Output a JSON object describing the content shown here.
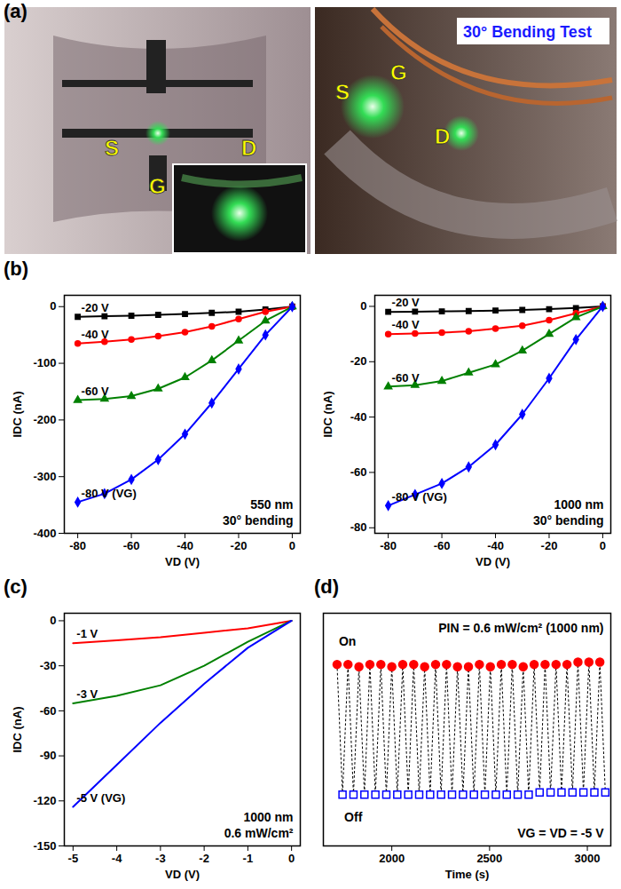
{
  "photo_panel": {
    "title": "(a)",
    "electrode_labels": [
      "S",
      "G",
      "D"
    ],
    "caption": "30° Bending Test"
  },
  "chart_data": [
    {
      "type": "line",
      "title": "(b)",
      "x_label": "VD (V)",
      "y_label": "IDC (nA)",
      "x": [
        -80,
        -70,
        -60,
        -50,
        -40,
        -30,
        -20,
        -10,
        0
      ],
      "xlim": [
        -85,
        3
      ],
      "xticks": [
        -80,
        -60,
        -40,
        -20,
        0
      ],
      "ylim": [
        -400,
        20
      ],
      "yticks": [
        0,
        -100,
        -200,
        -300,
        -400
      ],
      "series": [
        {
          "name": "-20 V",
          "color": "#000000",
          "marker": "square",
          "values": [
            -18,
            -17,
            -16,
            -14.5,
            -13,
            -11,
            -9,
            -5,
            0
          ]
        },
        {
          "name": "-40 V",
          "color": "#ff0000",
          "marker": "circle",
          "values": [
            -65,
            -62,
            -58,
            -52,
            -45,
            -35,
            -22,
            -9,
            0
          ]
        },
        {
          "name": "-60 V",
          "color": "#008000",
          "marker": "triangle",
          "values": [
            -165,
            -163,
            -158,
            -145,
            -125,
            -95,
            -60,
            -25,
            0
          ]
        },
        {
          "name": "-80 V (VG)",
          "color": "#0000ff",
          "marker": "diamond",
          "values": [
            -345,
            -330,
            -305,
            -270,
            -225,
            -170,
            -110,
            -50,
            0
          ]
        }
      ],
      "annotations": [
        "550 nm",
        "30° bending"
      ]
    },
    {
      "type": "line",
      "x_label": "VD (V)",
      "y_label": "IDC (nA)",
      "x": [
        -80,
        -70,
        -60,
        -50,
        -40,
        -30,
        -20,
        -10,
        0
      ],
      "xlim": [
        -85,
        3
      ],
      "xticks": [
        -80,
        -60,
        -40,
        -20,
        0
      ],
      "ylim": [
        -82,
        4
      ],
      "yticks": [
        0,
        -20,
        -40,
        -60,
        -80
      ],
      "series": [
        {
          "name": "-20 V",
          "color": "#000000",
          "marker": "square",
          "values": [
            -2,
            -1.9,
            -1.8,
            -1.7,
            -1.5,
            -1.3,
            -1,
            -0.6,
            0
          ]
        },
        {
          "name": "-40 V",
          "color": "#ff0000",
          "marker": "circle",
          "values": [
            -10,
            -9.8,
            -9.5,
            -9,
            -8,
            -7,
            -5,
            -2.5,
            0
          ]
        },
        {
          "name": "-60 V",
          "color": "#008000",
          "marker": "triangle",
          "values": [
            -29,
            -28.5,
            -27,
            -24,
            -21,
            -16,
            -10,
            -4,
            0
          ]
        },
        {
          "name": "-80 V (VG)",
          "color": "#0000ff",
          "marker": "diamond",
          "values": [
            -72,
            -68,
            -64,
            -58,
            -50,
            -39,
            -26,
            -12,
            0
          ]
        }
      ],
      "annotations": [
        "1000 nm",
        "30° bending"
      ]
    },
    {
      "type": "line",
      "title": "(c)",
      "x_label": "VD (V)",
      "y_label": "IDC (nA)",
      "x": [
        -5,
        -4,
        -3,
        -2,
        -1,
        0
      ],
      "xlim": [
        -5.2,
        0.2
      ],
      "xticks": [
        -5,
        -4,
        -3,
        -2,
        -1,
        0
      ],
      "ylim": [
        -150,
        5
      ],
      "yticks": [
        0,
        -30,
        -60,
        -90,
        -120,
        -150
      ],
      "series": [
        {
          "name": "-1 V",
          "color": "#ff0000",
          "values": [
            -15,
            -13,
            -11,
            -8,
            -5,
            0
          ]
        },
        {
          "name": "-3 V",
          "color": "#008000",
          "values": [
            -55,
            -50,
            -43,
            -30,
            -14,
            0
          ]
        },
        {
          "name": "-5 V (VG)",
          "color": "#0000ff",
          "values": [
            -124,
            -96,
            -68,
            -42,
            -18,
            0
          ]
        }
      ],
      "annotations": [
        "1000 nm",
        "0.6 mW/cm²"
      ]
    },
    {
      "type": "scatter",
      "title": "(d)",
      "x_label": "Time (s)",
      "xlim": [
        1650,
        3120
      ],
      "xticks": [
        2000,
        2500,
        3000
      ],
      "ylim": [
        0,
        100
      ],
      "yticks": [],
      "tick_labels": "x",
      "line_style": "dotted",
      "series": [
        {
          "name": "On",
          "color": "#ff0000",
          "marker": "circle",
          "x": [
            1720,
            1776,
            1832,
            1888,
            1944,
            2000,
            2056,
            2112,
            2168,
            2224,
            2280,
            2336,
            2392,
            2448,
            2504,
            2560,
            2616,
            2672,
            2728,
            2784,
            2840,
            2896,
            2952,
            3008,
            3064
          ],
          "values": [
            78,
            78,
            77,
            78,
            78,
            77,
            78,
            78,
            77,
            78,
            78,
            77,
            77,
            78,
            77,
            78,
            78,
            77,
            78,
            78,
            78,
            78,
            79,
            79,
            79
          ]
        },
        {
          "name": "Off",
          "color": "#0000ff",
          "marker": "square",
          "x": [
            1748,
            1804,
            1860,
            1916,
            1972,
            2028,
            2084,
            2140,
            2196,
            2252,
            2308,
            2364,
            2420,
            2476,
            2532,
            2588,
            2644,
            2700,
            2756,
            2812,
            2868,
            2924,
            2980,
            3036,
            3092
          ],
          "values": [
            22,
            22,
            22,
            22,
            22,
            22,
            22,
            22,
            22,
            22,
            22,
            22,
            22,
            22,
            22,
            22,
            22,
            22,
            23,
            23,
            23,
            23,
            23,
            23,
            23
          ]
        }
      ],
      "annotations": [
        "PIN = 0.6 mW/cm² (1000 nm)",
        "VG = VD = -5 V"
      ]
    }
  ]
}
